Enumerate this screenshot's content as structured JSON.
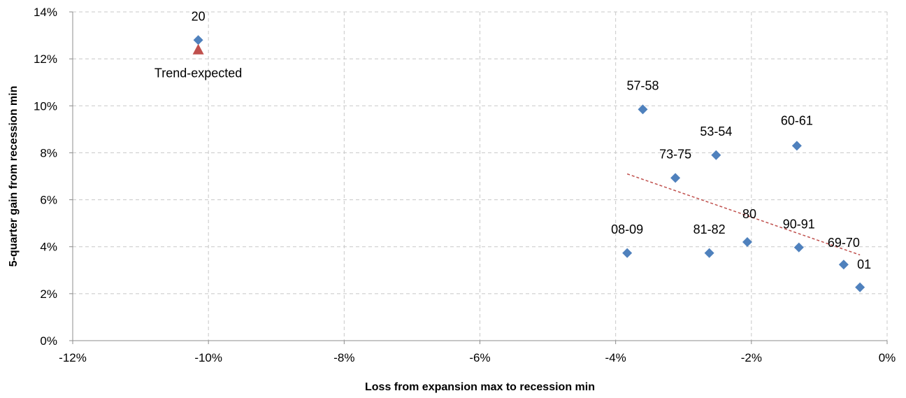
{
  "chart_data": {
    "type": "scatter",
    "xlabel": "Loss from expansion max to recession min",
    "ylabel": "5-quarter gain from recession min",
    "xlim": [
      -12,
      0
    ],
    "ylim": [
      0,
      14
    ],
    "x_unit": "%",
    "y_unit": "%",
    "x_ticks": [
      "-12%",
      "-10%",
      "-8%",
      "-6%",
      "-4%",
      "-2%",
      "0%"
    ],
    "y_ticks": [
      "0%",
      "2%",
      "4%",
      "6%",
      "8%",
      "10%",
      "12%",
      "14%"
    ],
    "grid": true,
    "legend": "none",
    "series": [
      {
        "marker": "diamond",
        "color": "#4F81BD",
        "points": [
          {
            "label": "20",
            "x": -10.15,
            "y": 12.8
          },
          {
            "label": "57-58",
            "x": -3.6,
            "y": 9.85
          },
          {
            "label": "53-54",
            "x": -2.52,
            "y": 7.9
          },
          {
            "label": "60-61",
            "x": -1.33,
            "y": 8.3
          },
          {
            "label": "73-75",
            "x": -3.12,
            "y": 6.93
          },
          {
            "label": "08-09",
            "x": -3.83,
            "y": 3.73
          },
          {
            "label": "81-82",
            "x": -2.62,
            "y": 3.73
          },
          {
            "label": "80",
            "x": -2.06,
            "y": 4.2
          },
          {
            "label": "90-91",
            "x": -1.3,
            "y": 3.97
          },
          {
            "label": "69-70",
            "x": -0.64,
            "y": 3.24
          },
          {
            "label": "01",
            "x": -0.4,
            "y": 2.27
          }
        ]
      },
      {
        "marker": "triangle",
        "color": "#C0504D",
        "points": [
          {
            "label": "Trend-expected",
            "x": -10.15,
            "y": 12.4
          }
        ]
      }
    ],
    "trendline": {
      "style": "dashed",
      "color": "#C0504D",
      "x": [
        -3.83,
        -0.4
      ],
      "y": [
        7.1,
        3.65
      ]
    }
  }
}
